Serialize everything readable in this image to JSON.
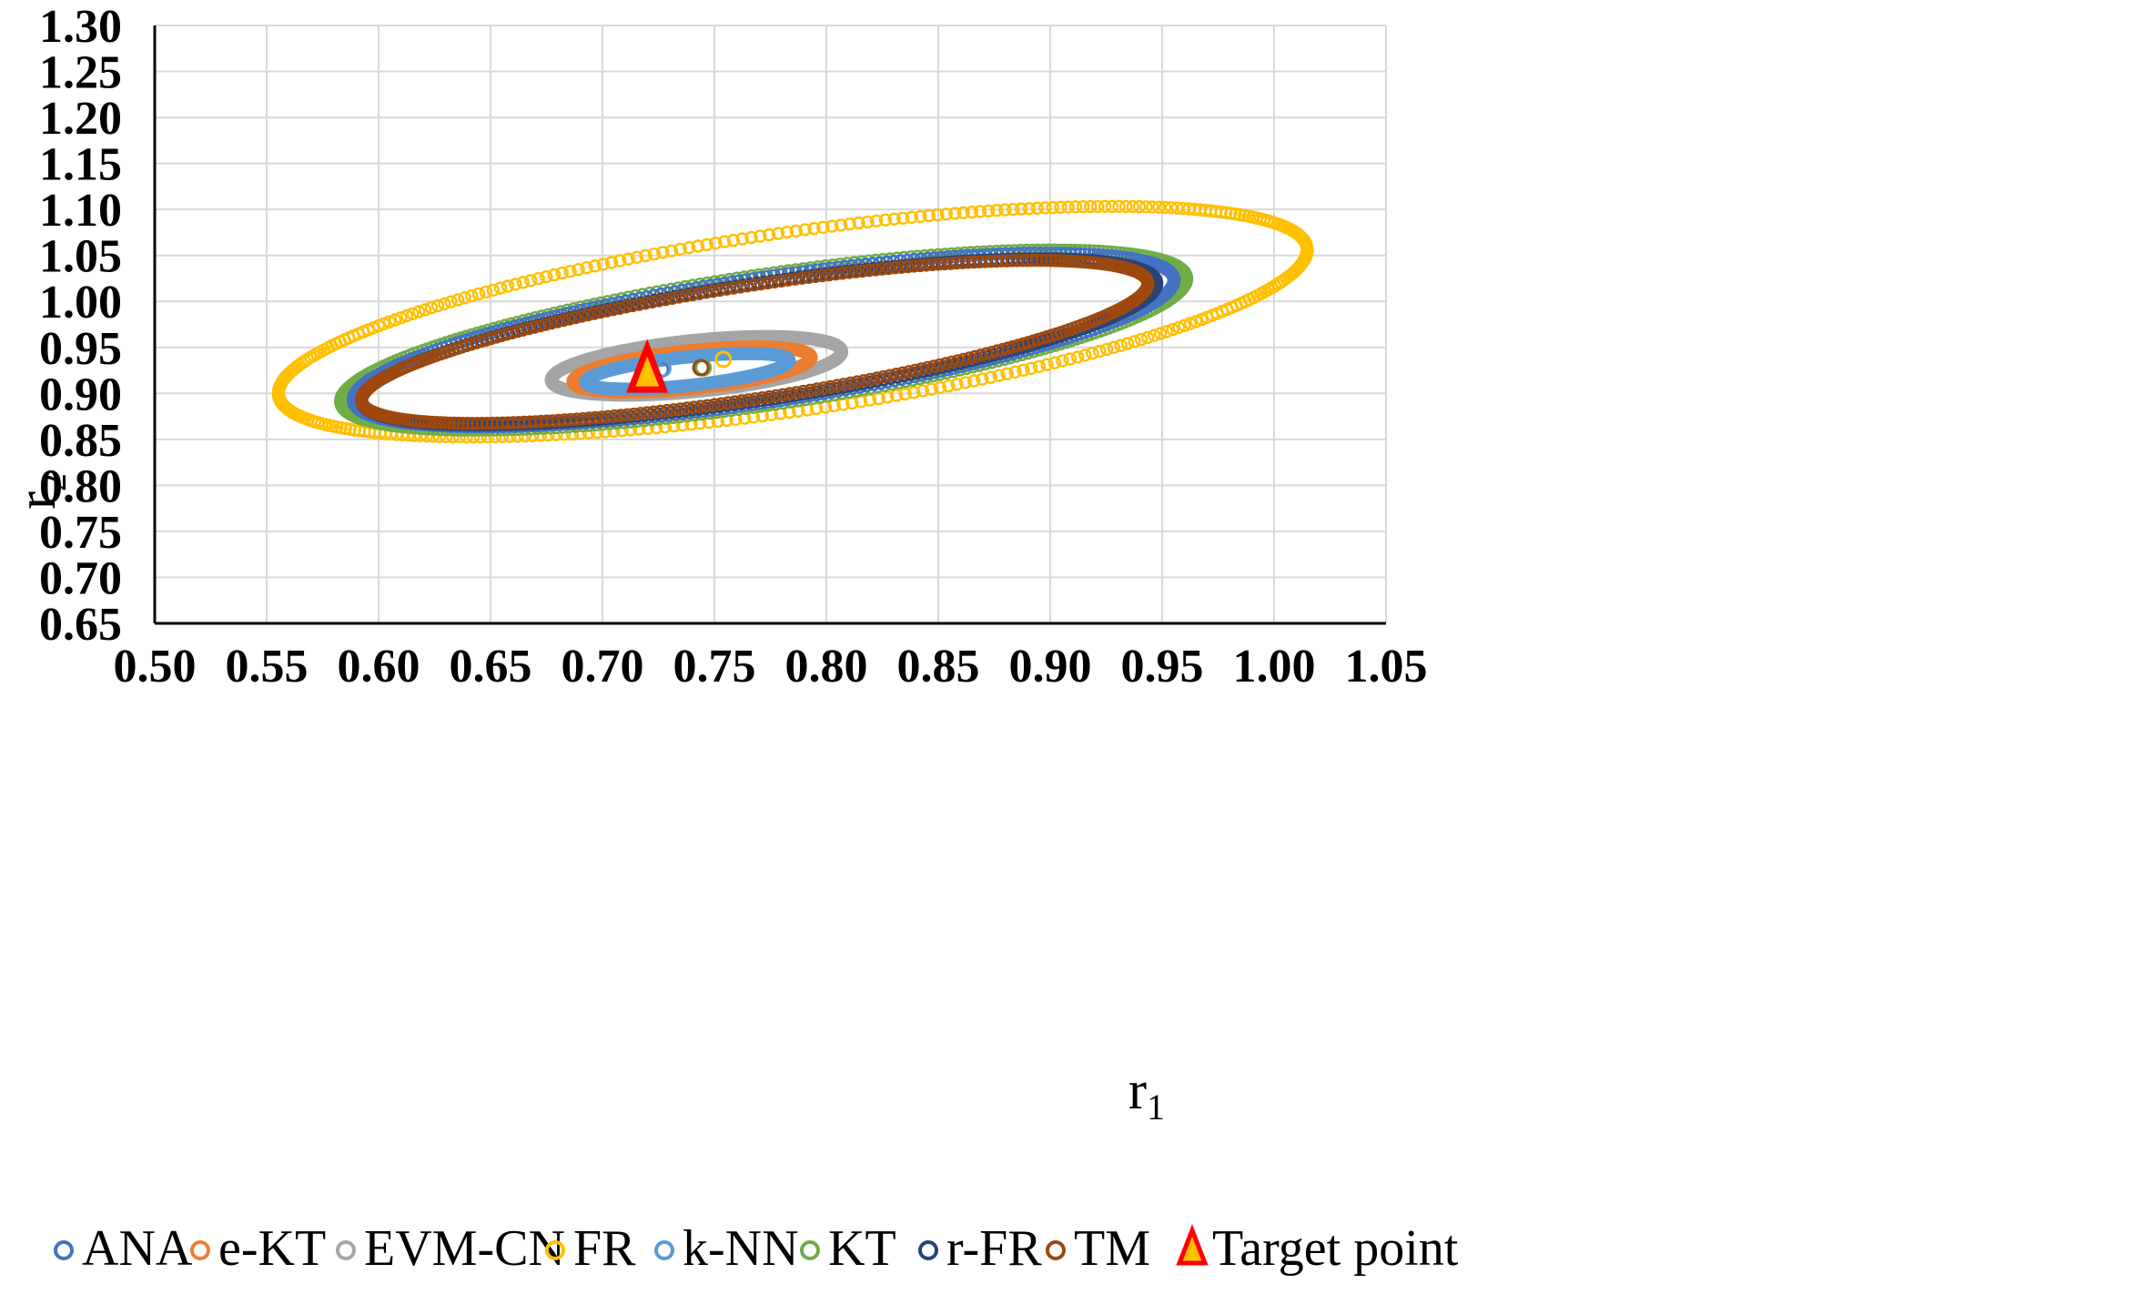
{
  "chart_data": {
    "type": "scatter",
    "title": "",
    "xlabel": "r",
    "xlabel_sub": "1",
    "ylabel": "r",
    "ylabel_sub": "2",
    "xlim": [
      0.5,
      1.05
    ],
    "ylim": [
      0.65,
      1.3
    ],
    "x_ticks": [
      "0.50",
      "0.55",
      "0.60",
      "0.65",
      "0.70",
      "0.75",
      "0.80",
      "0.85",
      "0.90",
      "0.95",
      "1.00",
      "1.05"
    ],
    "y_ticks": [
      "0.65",
      "0.70",
      "0.75",
      "0.80",
      "0.85",
      "0.90",
      "0.95",
      "1.00",
      "1.05",
      "1.10",
      "1.15",
      "1.20",
      "1.25",
      "1.30"
    ],
    "grid": true,
    "legend_position": "bottom",
    "target_point": {
      "name": "Target point",
      "x": 0.72,
      "y": 0.92,
      "color": "#ff0000",
      "fill": "#ffc000"
    },
    "series": [
      {
        "name": "ANA",
        "color": "#4472c4",
        "center": [
          0.726,
          0.926
        ],
        "contour": {
          "cx": 0.772,
          "cy": 0.958,
          "a": 0.196,
          "b": 0.064,
          "angle_deg": 22
        }
      },
      {
        "name": "e-KT",
        "color": "#ed7d31",
        "center": [
          0.745,
          0.928
        ],
        "contour": {
          "cx": 0.74,
          "cy": 0.926,
          "a": 0.055,
          "b": 0.02,
          "angle_deg": 16
        }
      },
      {
        "name": "EVM-CN",
        "color": "#a5a5a5",
        "center": [
          0.744,
          0.928
        ],
        "contour": {
          "cx": 0.742,
          "cy": 0.93,
          "a": 0.067,
          "b": 0.027,
          "angle_deg": 16
        }
      },
      {
        "name": "FR",
        "color": "#ffc000",
        "center": [
          0.754,
          0.937
        ],
        "contour": {
          "cx": 0.785,
          "cy": 0.978,
          "a": 0.245,
          "b": 0.092,
          "angle_deg": 22
        }
      },
      {
        "name": "k-NN",
        "color": "#5b9bd5",
        "center": [
          0.727,
          0.927
        ],
        "contour": {
          "cx": 0.738,
          "cy": 0.924,
          "a": 0.047,
          "b": 0.015,
          "angle_deg": 16
        }
      },
      {
        "name": "KT",
        "color": "#70ad47",
        "center": [
          0.745,
          0.928
        ],
        "contour": {
          "cx": 0.772,
          "cy": 0.958,
          "a": 0.202,
          "b": 0.067,
          "angle_deg": 22
        }
      },
      {
        "name": "r-FR",
        "color": "#264478",
        "center": [
          0.744,
          0.928
        ],
        "contour": {
          "cx": 0.77,
          "cy": 0.956,
          "a": 0.19,
          "b": 0.06,
          "angle_deg": 22
        }
      },
      {
        "name": "TM",
        "color": "#9e480e",
        "center": [
          0.744,
          0.928
        ],
        "contour": {
          "cx": 0.768,
          "cy": 0.956,
          "a": 0.188,
          "b": 0.058,
          "angle_deg": 22
        }
      }
    ]
  }
}
